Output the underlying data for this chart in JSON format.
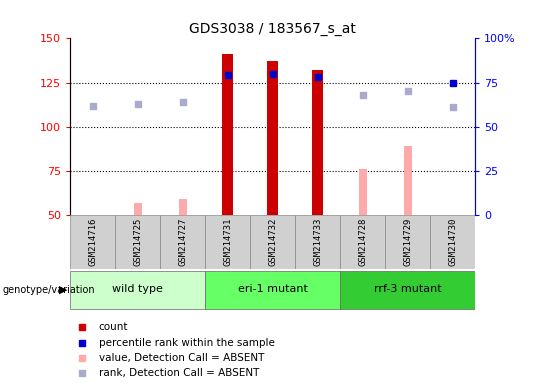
{
  "title": "GDS3038 / 183567_s_at",
  "samples": [
    "GSM214716",
    "GSM214725",
    "GSM214727",
    "GSM214731",
    "GSM214732",
    "GSM214733",
    "GSM214728",
    "GSM214729",
    "GSM214730"
  ],
  "count_values": [
    null,
    null,
    null,
    141,
    137,
    132,
    null,
    null,
    null
  ],
  "count_color": "#cc0000",
  "percentile_values": [
    null,
    null,
    null,
    129,
    130,
    128,
    null,
    null,
    125
  ],
  "percentile_color": "#0000cc",
  "absent_value_values": [
    null,
    57,
    59,
    null,
    null,
    null,
    76,
    89,
    null
  ],
  "absent_value_color": "#ffaaaa",
  "absent_rank_values": [
    112,
    113,
    114,
    null,
    null,
    null,
    118,
    120,
    111
  ],
  "absent_rank_color": "#aaaacc",
  "ylim_left": [
    50,
    150
  ],
  "yticks_left": [
    50,
    75,
    100,
    125,
    150
  ],
  "ylim_right": [
    0,
    100
  ],
  "yticks_right": [
    0,
    25,
    50,
    75,
    100
  ],
  "group_positions": [
    [
      0,
      2,
      "#ccffcc",
      "wild type"
    ],
    [
      3,
      5,
      "#66ff66",
      "eri-1 mutant"
    ],
    [
      6,
      8,
      "#33cc33",
      "rrf-3 mutant"
    ]
  ],
  "bar_width": 0.25,
  "absent_bar_width": 0.18,
  "percentile_marker_size": 5,
  "absent_rank_marker_size": 5,
  "grid_dotted_at": [
    75,
    100,
    125
  ],
  "sample_box_color": "#d0d0d0",
  "sample_box_edge": "#888888",
  "legend_items": [
    [
      "#cc0000",
      "count"
    ],
    [
      "#0000cc",
      "percentile rank within the sample"
    ],
    [
      "#ffaaaa",
      "value, Detection Call = ABSENT"
    ],
    [
      "#aaaacc",
      "rank, Detection Call = ABSENT"
    ]
  ]
}
